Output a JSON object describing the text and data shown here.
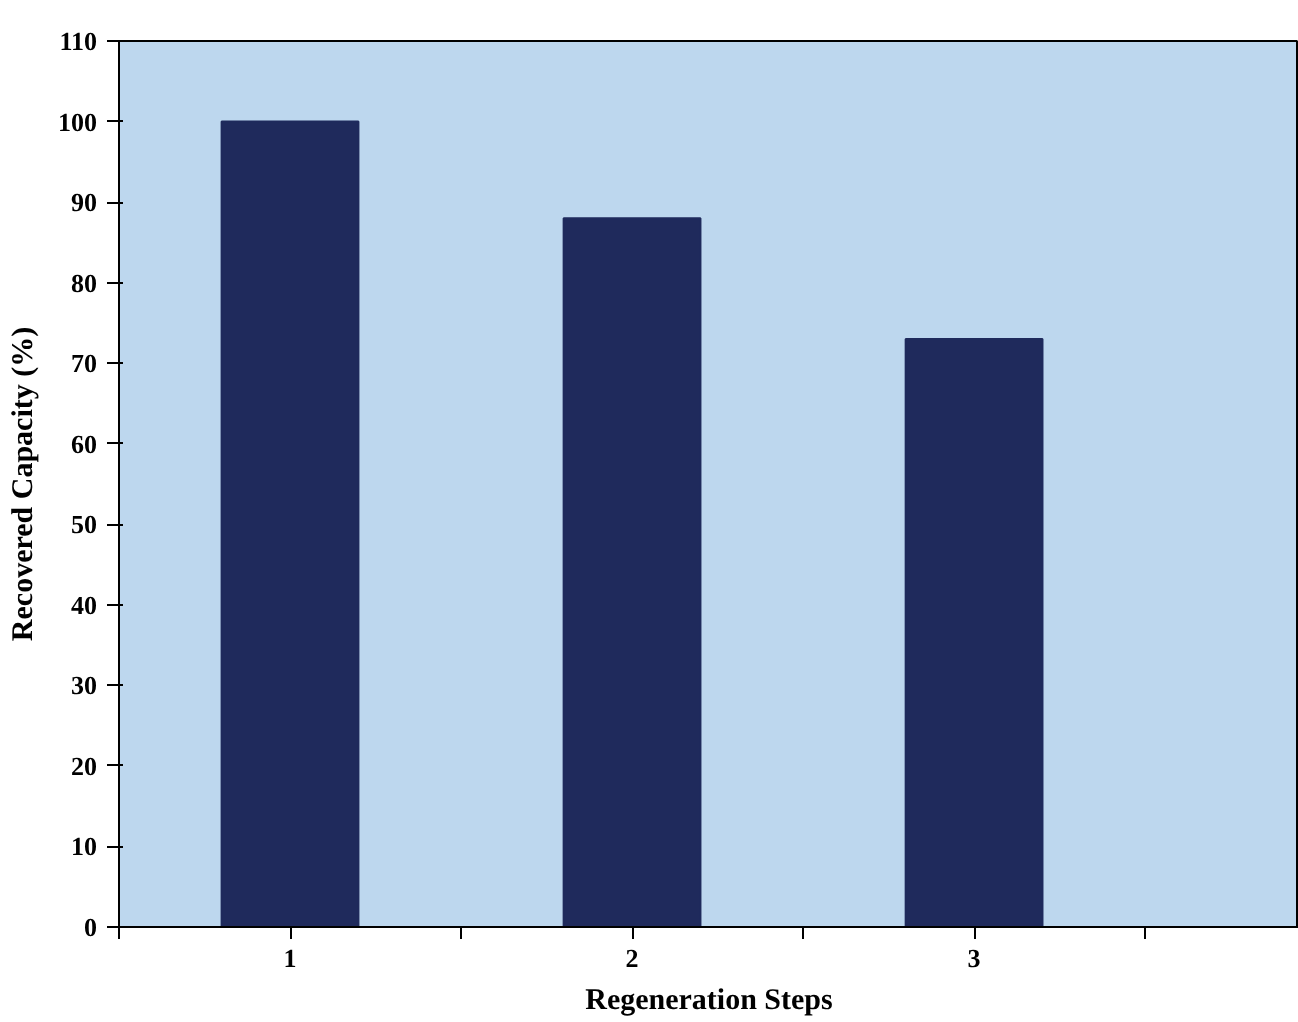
{
  "chart_data": {
    "type": "bar",
    "xlabel": "Regeneration Steps",
    "ylabel": "Recovered Capacity (%)",
    "categories": [
      "1",
      "2",
      "3"
    ],
    "values": [
      100,
      88,
      73
    ],
    "color": "#1f2a5c",
    "ylim": [
      0,
      110
    ],
    "yticks": [
      0,
      10,
      20,
      30,
      40,
      50,
      60,
      70,
      80,
      90,
      100,
      110
    ],
    "grid": false
  }
}
